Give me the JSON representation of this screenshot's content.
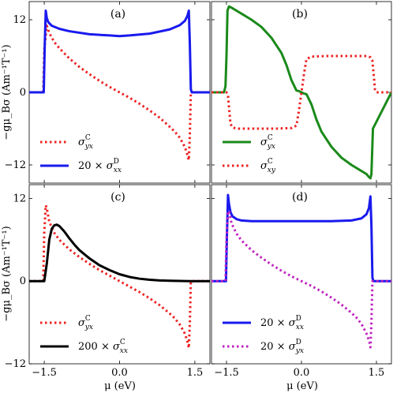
{
  "figure": {
    "ylabel": "−gμ_Bσ (Am⁻¹T⁻¹)",
    "xlabel": "μ (eV)"
  },
  "colors": {
    "red": "#ee2222",
    "blue": "#1a1aee",
    "green": "#1a8a1a",
    "black": "#000000",
    "magenta": "#c020c0"
  },
  "chart_data": [
    {
      "panel": "(a)",
      "type": "line",
      "xlim": [
        -1.8,
        1.8
      ],
      "ylim": [
        -15,
        15
      ],
      "yticks": [
        -12,
        0,
        12
      ],
      "legend_position": "lower-left",
      "series": [
        {
          "name": "σ_yx^C",
          "color": "#ee2222",
          "style": "dotted",
          "x": [
            -1.8,
            -1.52,
            -1.5,
            -1.45,
            -1.4,
            -1.3,
            -1.2,
            -1.0,
            -0.8,
            -0.6,
            -0.4,
            -0.2,
            0.0,
            0.2,
            0.4,
            0.6,
            0.8,
            1.0,
            1.1,
            1.2,
            1.3,
            1.35,
            1.38,
            1.4,
            1.42,
            1.8
          ],
          "y": [
            0,
            0,
            7,
            11,
            9.8,
            8.3,
            7.3,
            5.6,
            4.2,
            3.0,
            1.9,
            0.9,
            0,
            -0.9,
            -1.9,
            -3.0,
            -4.2,
            -5.7,
            -6.5,
            -7.5,
            -9.0,
            -10.3,
            -11.2,
            -7,
            0,
            0
          ]
        },
        {
          "name": "20 × σ_xx^D",
          "color": "#1a1aee",
          "style": "solid",
          "x": [
            -1.8,
            -1.51,
            -1.49,
            -1.47,
            -1.45,
            -1.42,
            -1.35,
            -1.2,
            -1.0,
            -0.6,
            -0.2,
            0.0,
            0.2,
            0.6,
            1.0,
            1.2,
            1.3,
            1.35,
            1.38,
            1.4,
            1.42,
            1.44,
            1.46,
            1.8
          ],
          "y": [
            0,
            0,
            8,
            13.5,
            12.3,
            11.6,
            11.0,
            10.5,
            10.1,
            9.6,
            9.4,
            9.3,
            9.4,
            9.7,
            10.4,
            11.1,
            11.8,
            12.6,
            13.5,
            8,
            0.5,
            0,
            0,
            0
          ]
        }
      ],
      "legend": [
        "σ_yx^C",
        "20 × σ_xx^D"
      ]
    },
    {
      "panel": "(b)",
      "type": "line",
      "xlim": [
        -1.8,
        1.8
      ],
      "ylim": [
        -15,
        15
      ],
      "yticks": [
        -12,
        0,
        12
      ],
      "legend_position": "lower-left",
      "series": [
        {
          "name": "σ_yx^C",
          "color": "#1a8a1a",
          "style": "solid",
          "x": [
            -1.8,
            -1.55,
            -1.52,
            -1.5,
            -1.48,
            -1.45,
            -1.4,
            -1.3,
            -1.2,
            -1.0,
            -0.8,
            -0.6,
            -0.4,
            -0.3,
            -0.2,
            -0.1,
            -0.05,
            0.0,
            0.05,
            0.1,
            0.2,
            0.3,
            0.4,
            0.6,
            0.8,
            1.0,
            1.2,
            1.3,
            1.35,
            1.38,
            1.4,
            1.43,
            1.8
          ],
          "y": [
            0,
            0,
            1,
            6,
            13.5,
            14.2,
            14.0,
            13.5,
            13.0,
            12.0,
            10.8,
            9.0,
            6.5,
            4.5,
            2.0,
            0.3,
            0.2,
            0,
            -0.2,
            -0.3,
            -2.0,
            -4.5,
            -6.5,
            -9.0,
            -10.8,
            -12.0,
            -13.0,
            -13.5,
            -14.0,
            -14.2,
            -13.5,
            -6,
            0
          ]
        },
        {
          "name": "σ_xy^C",
          "color": "#ee2222",
          "style": "dotted",
          "x": [
            -1.8,
            -1.5,
            -1.47,
            -1.45,
            -1.42,
            -1.38,
            -1.3,
            -1.0,
            -0.5,
            -0.2,
            -0.1,
            -0.05,
            0.0,
            0.05,
            0.1,
            0.2,
            0.5,
            1.0,
            1.3,
            1.38,
            1.42,
            1.45,
            1.47,
            1.5,
            1.8
          ],
          "y": [
            0,
            0,
            -0.5,
            -2.5,
            -5.2,
            -5.8,
            -6.0,
            -6.0,
            -6.0,
            -5.9,
            -5.5,
            -3,
            0,
            3,
            5.5,
            5.9,
            6.0,
            6.0,
            6.0,
            5.8,
            5.2,
            2.5,
            0.5,
            0,
            0
          ]
        }
      ],
      "legend": [
        "σ_yx^C",
        "σ_xy^C"
      ]
    },
    {
      "panel": "(c)",
      "type": "line",
      "xlim": [
        -1.8,
        1.8
      ],
      "ylim": [
        -12,
        14
      ],
      "yticks": [
        -12,
        0,
        12
      ],
      "xticks": [
        -1.5,
        0.0,
        1.5
      ],
      "legend_position": "lower-left",
      "series": [
        {
          "name": "σ_yx^C",
          "color": "#ee2222",
          "style": "dotted",
          "x": [
            -1.8,
            -1.52,
            -1.5,
            -1.47,
            -1.45,
            -1.4,
            -1.3,
            -1.2,
            -1.0,
            -0.8,
            -0.6,
            -0.4,
            -0.2,
            0.0,
            0.2,
            0.4,
            0.6,
            0.8,
            1.0,
            1.1,
            1.2,
            1.3,
            1.35,
            1.38,
            1.4,
            1.42,
            1.8
          ],
          "y": [
            0,
            0,
            7,
            11,
            10.6,
            8.6,
            7.0,
            6.0,
            4.6,
            3.5,
            2.5,
            1.6,
            0.8,
            0,
            -0.8,
            -1.6,
            -2.5,
            -3.5,
            -4.7,
            -5.4,
            -6.3,
            -7.6,
            -8.7,
            -9.7,
            -6,
            0,
            0
          ]
        },
        {
          "name": "200 × σ_xx^C",
          "color": "#000000",
          "style": "solid",
          "x": [
            -1.8,
            -1.5,
            -1.45,
            -1.4,
            -1.35,
            -1.3,
            -1.25,
            -1.2,
            -1.1,
            -1.0,
            -0.9,
            -0.8,
            -0.6,
            -0.4,
            -0.2,
            0.0,
            0.2,
            0.4,
            0.6,
            0.8,
            1.0,
            1.2,
            1.4,
            1.8
          ],
          "y": [
            0,
            0,
            2.5,
            6.0,
            7.6,
            8.1,
            8.2,
            8.0,
            7.2,
            6.2,
            5.3,
            4.5,
            3.3,
            2.3,
            1.6,
            1.0,
            0.6,
            0.35,
            0.2,
            0.1,
            0.05,
            0.02,
            0,
            0
          ]
        }
      ],
      "legend": [
        "σ_yx^C",
        "200 × σ_xx^C"
      ]
    },
    {
      "panel": "(d)",
      "type": "line",
      "xlim": [
        -1.8,
        1.8
      ],
      "ylim": [
        -12,
        14
      ],
      "yticks": [
        -12,
        0,
        12
      ],
      "xticks": [
        -1.5,
        0.0,
        1.5
      ],
      "legend_position": "lower-left",
      "series": [
        {
          "name": "20 × σ_xx^D",
          "color": "#1a1aee",
          "style": "solid",
          "x": [
            -1.8,
            -1.51,
            -1.49,
            -1.47,
            -1.45,
            -1.42,
            -1.38,
            -1.3,
            -1.2,
            -1.0,
            -0.6,
            -0.2,
            0.0,
            0.2,
            0.6,
            1.0,
            1.2,
            1.3,
            1.35,
            1.38,
            1.4,
            1.42,
            1.44,
            1.8
          ],
          "y": [
            0,
            0,
            7,
            12.5,
            11.2,
            10.0,
            9.4,
            9.0,
            8.8,
            8.7,
            8.7,
            8.7,
            8.7,
            8.7,
            8.7,
            8.8,
            9.1,
            9.7,
            10.6,
            12.3,
            8,
            0.5,
            0,
            0
          ]
        },
        {
          "name": "20 × σ_yx^D",
          "color": "#c020c0",
          "style": "dotted",
          "x": [
            -1.8,
            -1.52,
            -1.5,
            -1.47,
            -1.45,
            -1.4,
            -1.3,
            -1.2,
            -1.0,
            -0.8,
            -0.6,
            -0.4,
            -0.2,
            0.0,
            0.2,
            0.4,
            0.6,
            0.8,
            1.0,
            1.1,
            1.2,
            1.3,
            1.35,
            1.38,
            1.4,
            1.42,
            1.8
          ],
          "y": [
            0,
            0,
            6,
            10,
            10.2,
            8.4,
            6.9,
            5.9,
            4.5,
            3.4,
            2.4,
            1.5,
            0.7,
            0,
            -0.7,
            -1.5,
            -2.4,
            -3.4,
            -4.6,
            -5.3,
            -6.2,
            -7.6,
            -8.6,
            -9.6,
            -6,
            0,
            0
          ]
        }
      ],
      "legend": [
        "20 × σ_xx^D",
        "20 × σ_yx^D"
      ]
    }
  ],
  "panel_legends": [
    [
      {
        "base": "σ",
        "sub": "yx",
        "sup": "C"
      },
      {
        "prefix": "20 × ",
        "base": "σ",
        "sub": "xx",
        "sup": "D"
      }
    ],
    [
      {
        "base": "σ",
        "sub": "yx",
        "sup": "C"
      },
      {
        "base": "σ",
        "sub": "xy",
        "sup": "C"
      }
    ],
    [
      {
        "base": "σ",
        "sub": "yx",
        "sup": "C"
      },
      {
        "prefix": "200 × ",
        "base": "σ",
        "sub": "xx",
        "sup": "C"
      }
    ],
    [
      {
        "prefix": "20 × ",
        "base": "σ",
        "sub": "xx",
        "sup": "D"
      },
      {
        "prefix": "20 × ",
        "base": "σ",
        "sub": "yx",
        "sup": "D"
      }
    ]
  ],
  "ytick_labels": [
    "−12",
    "0",
    "12"
  ],
  "xtick_labels": [
    "−1.5",
    "0.0",
    "1.5"
  ]
}
